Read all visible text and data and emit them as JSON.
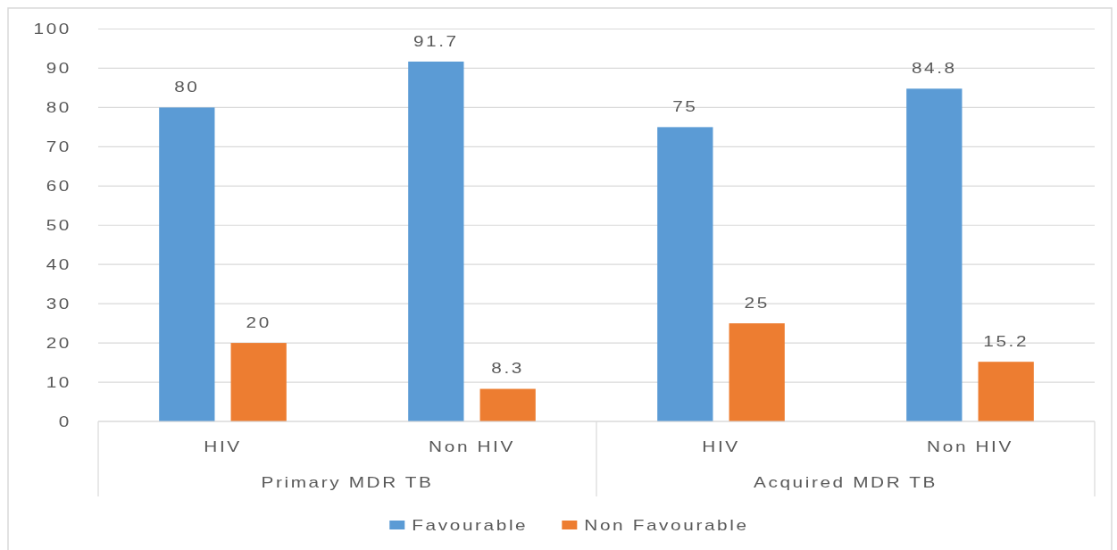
{
  "chart_data": {
    "type": "bar",
    "categories": [
      "HIV",
      "Non HIV",
      "HIV",
      "Non HIV"
    ],
    "series": [
      {
        "name": "Favourable",
        "color": "#5b9bd5",
        "values": [
          80,
          91.7,
          75,
          84.8
        ]
      },
      {
        "name": "Non Favourable",
        "color": "#ed7d31",
        "values": [
          20,
          8.3,
          25,
          15.2
        ]
      }
    ],
    "ylim": [
      0,
      100
    ],
    "yticks": [
      0,
      10,
      20,
      30,
      40,
      50,
      60,
      70,
      80,
      90,
      100
    ],
    "grid": "y",
    "legend": "bottom",
    "data_labels": true,
    "annotations": [
      "Primary MDR TB",
      "Acquired MDR TB"
    ]
  }
}
